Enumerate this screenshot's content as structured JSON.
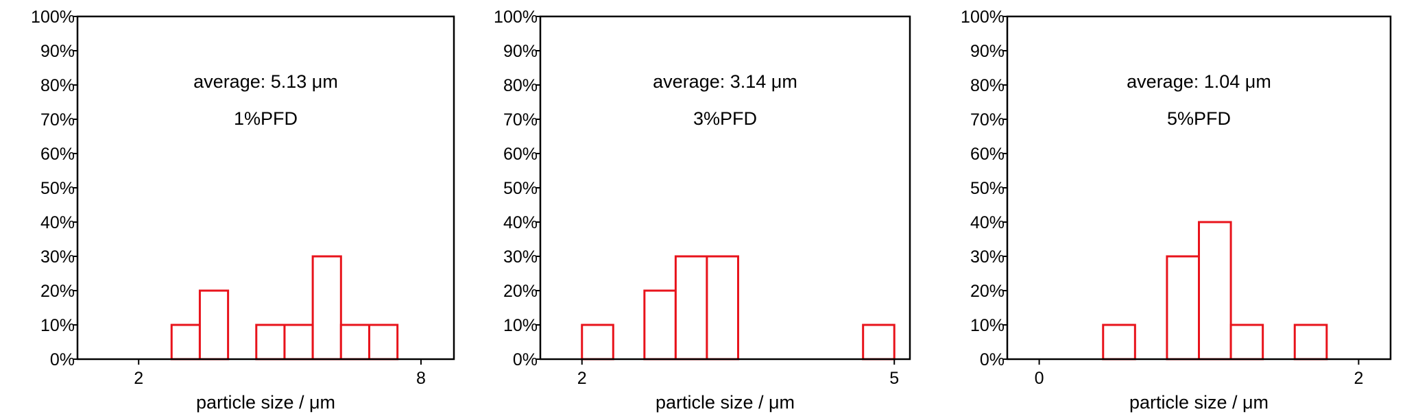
{
  "chart_data": [
    {
      "type": "bar",
      "xlabel": "particle size / μm",
      "x_ticks": [
        2,
        8
      ],
      "x_range": [
        0.7,
        8.7
      ],
      "y_ticks": [
        "0%",
        "10%",
        "20%",
        "30%",
        "40%",
        "50%",
        "60%",
        "70%",
        "80%",
        "90%",
        "100%"
      ],
      "ylim": [
        0,
        100
      ],
      "annotations": [
        "average: 5.13 μm",
        "1%PFD"
      ],
      "bars": [
        {
          "x0": 2.7,
          "x1": 3.3,
          "value": 10
        },
        {
          "x0": 3.3,
          "x1": 3.9,
          "value": 20
        },
        {
          "x0": 4.5,
          "x1": 5.1,
          "value": 10
        },
        {
          "x0": 5.1,
          "x1": 5.7,
          "value": 10
        },
        {
          "x0": 5.7,
          "x1": 6.3,
          "value": 30
        },
        {
          "x0": 6.3,
          "x1": 6.9,
          "value": 10
        },
        {
          "x0": 6.9,
          "x1": 7.5,
          "value": 10
        }
      ]
    },
    {
      "type": "bar",
      "xlabel": "particle size / μm",
      "x_ticks": [
        2,
        5
      ],
      "x_range": [
        1.6,
        5.15
      ],
      "y_ticks": [
        "0%",
        "10%",
        "20%",
        "30%",
        "40%",
        "50%",
        "60%",
        "70%",
        "80%",
        "90%",
        "100%"
      ],
      "ylim": [
        0,
        100
      ],
      "annotations": [
        "average: 3.14 μm",
        "3%PFD"
      ],
      "bars": [
        {
          "x0": 2.0,
          "x1": 2.3,
          "value": 10
        },
        {
          "x0": 2.6,
          "x1": 2.9,
          "value": 20
        },
        {
          "x0": 2.9,
          "x1": 3.2,
          "value": 30
        },
        {
          "x0": 3.2,
          "x1": 3.5,
          "value": 30
        },
        {
          "x0": 4.7,
          "x1": 5.0,
          "value": 10
        }
      ]
    },
    {
      "type": "bar",
      "xlabel": "particle size / μm",
      "x_ticks": [
        0,
        2
      ],
      "x_range": [
        -0.2,
        2.2
      ],
      "y_ticks": [
        "0%",
        "10%",
        "20%",
        "30%",
        "40%",
        "50%",
        "60%",
        "70%",
        "80%",
        "90%",
        "100%"
      ],
      "ylim": [
        0,
        100
      ],
      "annotations": [
        "average: 1.04 μm",
        "5%PFD"
      ],
      "bars": [
        {
          "x0": 0.4,
          "x1": 0.6,
          "value": 10
        },
        {
          "x0": 0.8,
          "x1": 1.0,
          "value": 30
        },
        {
          "x0": 1.0,
          "x1": 1.2,
          "value": 40
        },
        {
          "x0": 1.2,
          "x1": 1.4,
          "value": 10
        },
        {
          "x0": 1.6,
          "x1": 1.8,
          "value": 10
        }
      ]
    }
  ]
}
